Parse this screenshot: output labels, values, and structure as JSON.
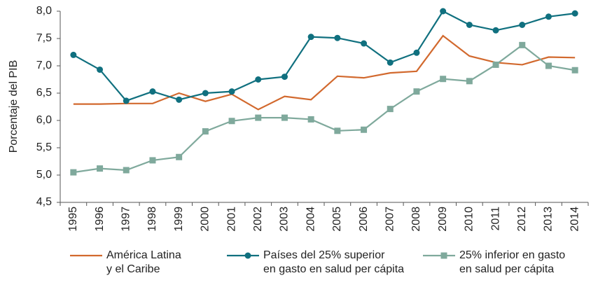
{
  "chart_data": {
    "type": "line",
    "y_label": "Porcentaje del PIB",
    "categories": [
      "1995",
      "1996",
      "1997",
      "1998",
      "1999",
      "2000",
      "2001",
      "2002",
      "2003",
      "2004",
      "2005",
      "2006",
      "2007",
      "2008",
      "2009",
      "2010",
      "2011",
      "2012",
      "2013",
      "2014"
    ],
    "series": [
      {
        "name": "América Latina\ny el Caribe",
        "color": "#d2692e",
        "marker": null,
        "values": [
          6.3,
          6.3,
          6.31,
          6.31,
          6.5,
          6.35,
          6.48,
          6.2,
          6.44,
          6.38,
          6.81,
          6.78,
          6.87,
          6.9,
          7.55,
          7.18,
          7.06,
          7.02,
          7.16,
          7.15
        ]
      },
      {
        "name": "Países del 25% superior\nen gasto en salud per cápita",
        "color": "#10707f",
        "marker": "circle",
        "values": [
          7.2,
          6.93,
          6.36,
          6.53,
          6.38,
          6.5,
          6.53,
          6.75,
          6.8,
          7.53,
          7.51,
          7.41,
          7.06,
          7.24,
          8.0,
          7.75,
          7.65,
          7.75,
          7.9,
          7.96
        ]
      },
      {
        "name": "25% inferior en gasto\nen salud per cápita",
        "color": "#7fa99c",
        "marker": "square",
        "values": [
          5.05,
          5.12,
          5.09,
          5.27,
          5.33,
          5.8,
          5.99,
          6.05,
          6.05,
          6.02,
          5.81,
          5.83,
          6.21,
          6.53,
          6.76,
          6.72,
          7.02,
          7.38,
          7.0,
          6.92
        ]
      }
    ],
    "ylim": [
      4.5,
      8.0
    ],
    "yticks": [
      {
        "value": 4.5,
        "label": "4,5"
      },
      {
        "value": 5.0,
        "label": "5,0"
      },
      {
        "value": 5.5,
        "label": "5,5"
      },
      {
        "value": 6.0,
        "label": "6,0"
      },
      {
        "value": 6.5,
        "label": "6,5"
      },
      {
        "value": 7.0,
        "label": "7,0"
      },
      {
        "value": 7.5,
        "label": "7,5"
      },
      {
        "value": 8.0,
        "label": "8,0"
      }
    ],
    "grid": false,
    "legend": "bottom"
  }
}
